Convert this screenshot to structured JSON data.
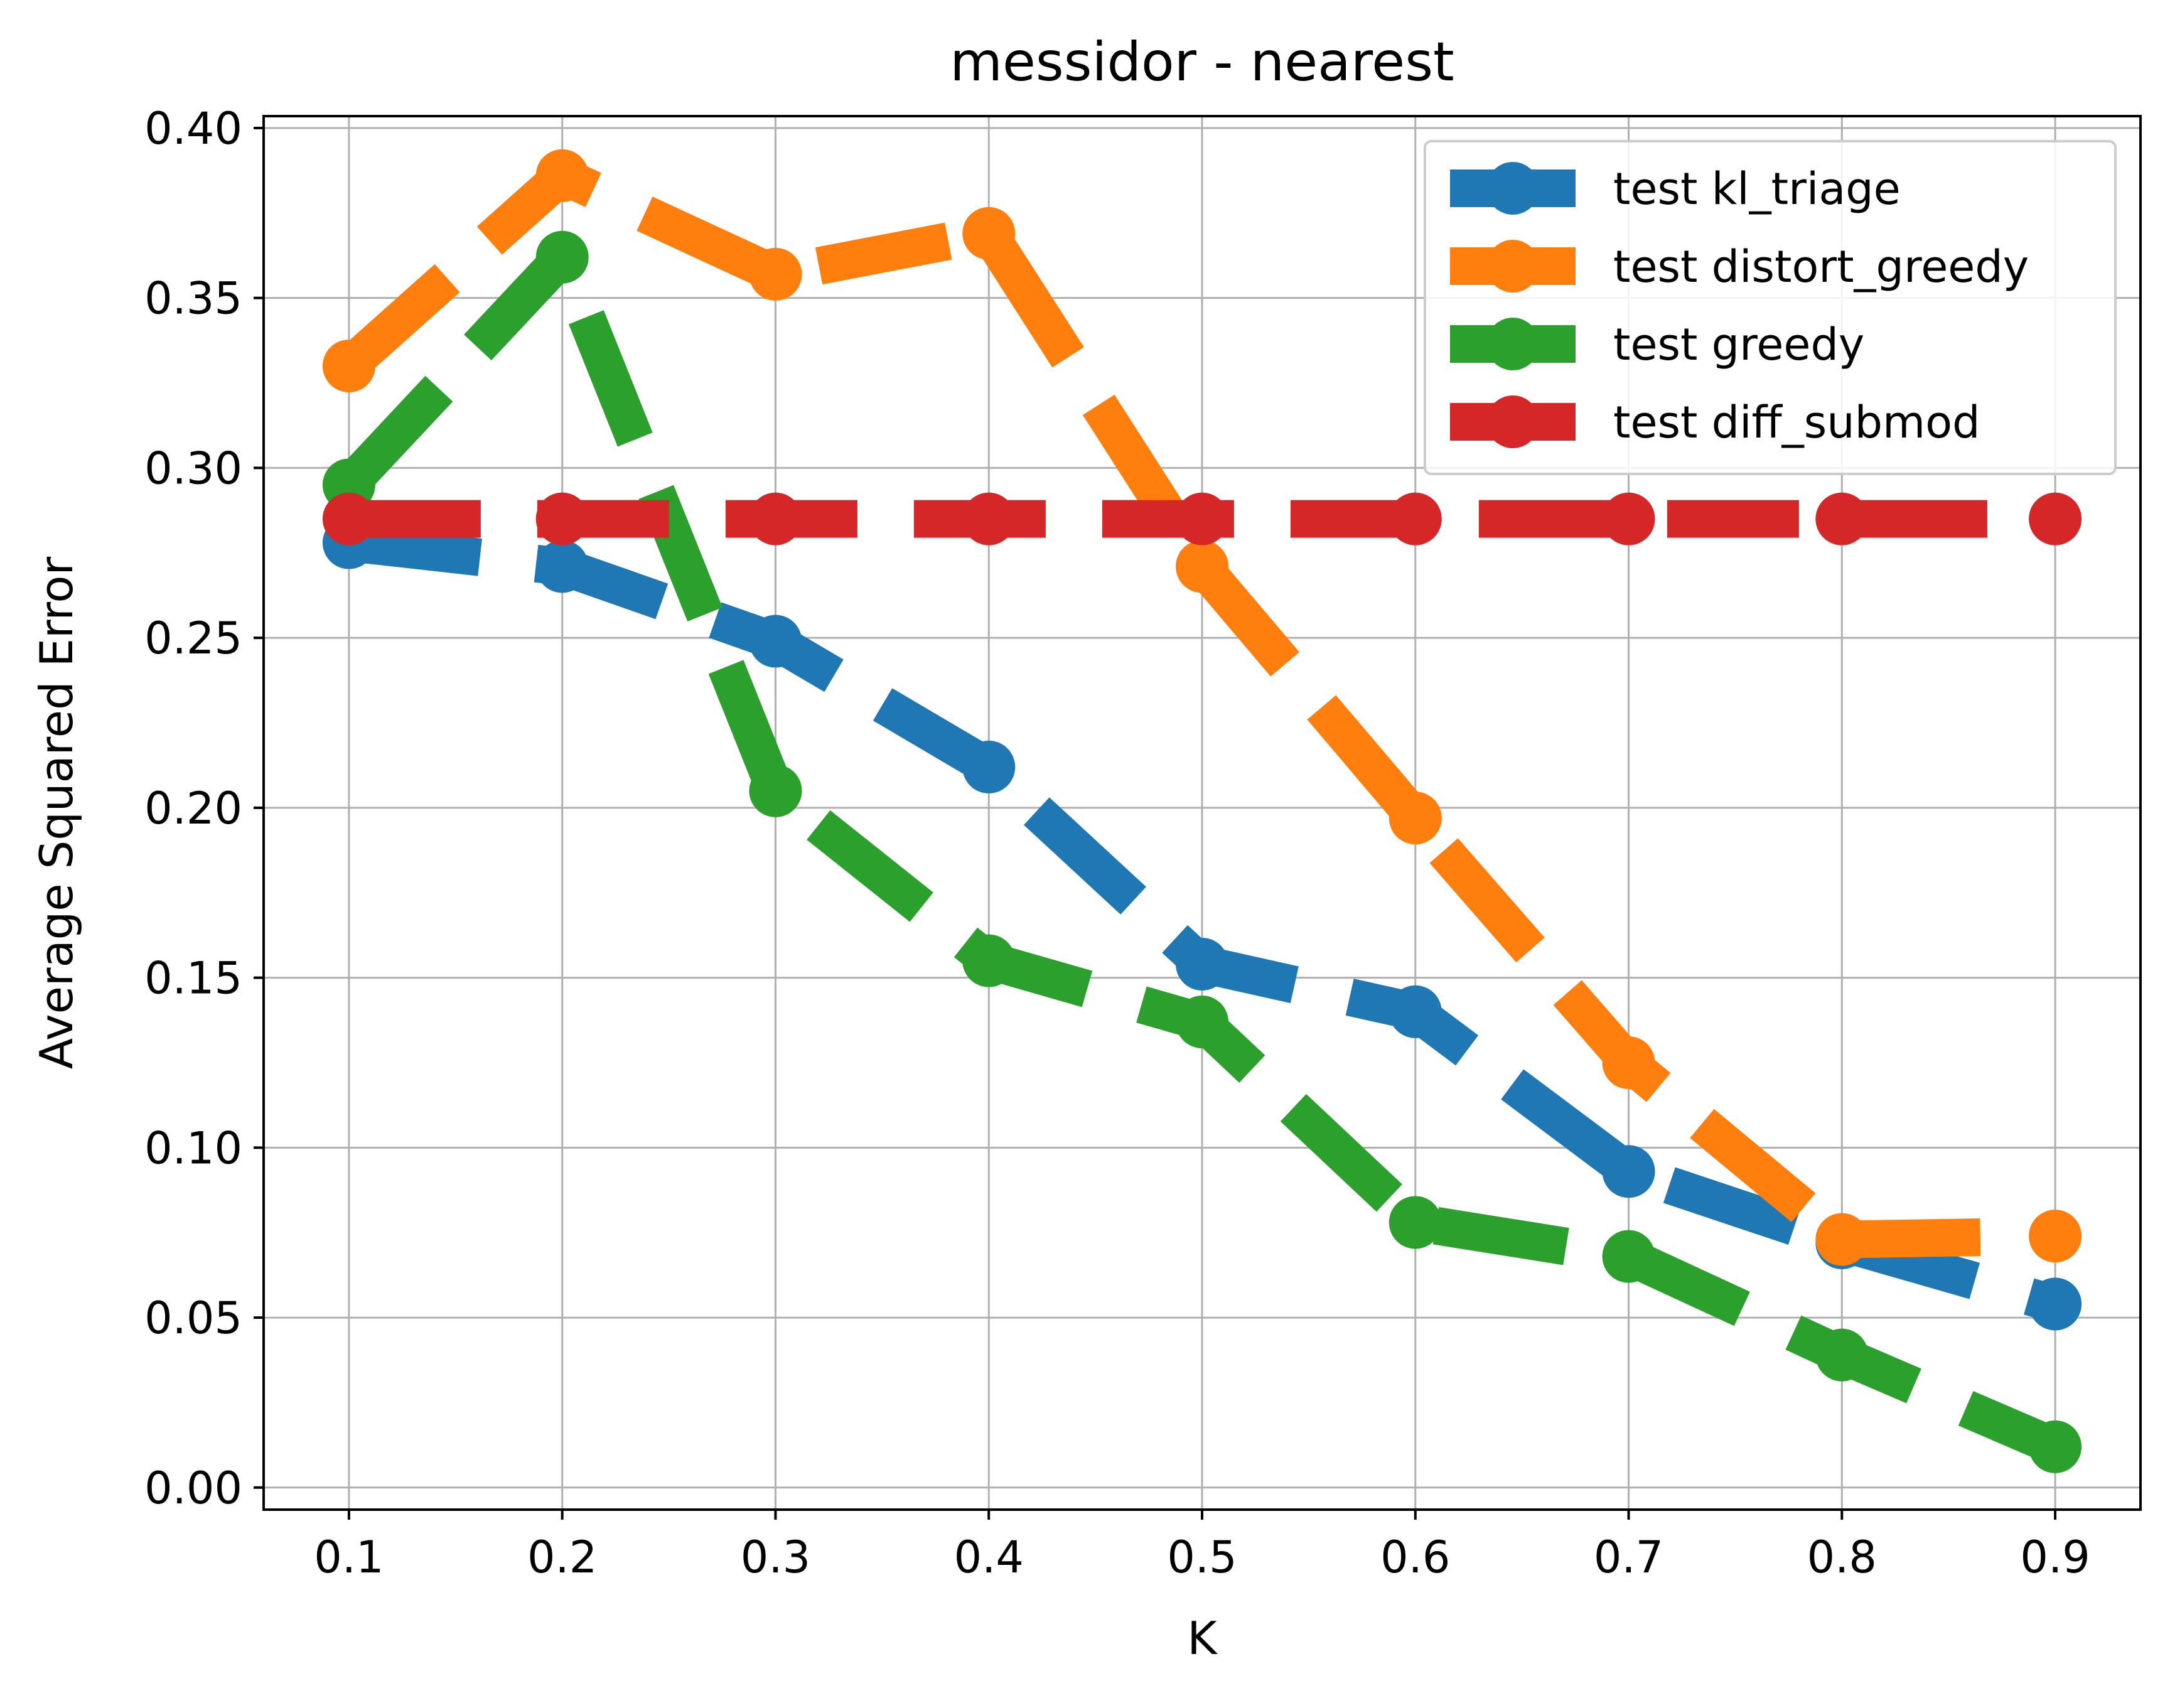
{
  "chart_data": {
    "type": "line",
    "title": "messidor - nearest",
    "xlabel": "K",
    "ylabel": "Average Squared Error",
    "x": [
      0.1,
      0.2,
      0.3,
      0.4,
      0.5,
      0.6,
      0.7,
      0.8,
      0.9
    ],
    "x_tick_labels": [
      "0.1",
      "0.2",
      "0.3",
      "0.4",
      "0.5",
      "0.6",
      "0.7",
      "0.8",
      "0.9"
    ],
    "y_ticks": [
      0.0,
      0.05,
      0.1,
      0.15,
      0.2,
      0.25,
      0.3,
      0.35,
      0.4
    ],
    "y_tick_labels": [
      "0.00",
      "0.05",
      "0.10",
      "0.15",
      "0.20",
      "0.25",
      "0.30",
      "0.35",
      "0.40"
    ],
    "xlim": [
      0.06,
      0.94
    ],
    "ylim": [
      -0.0065,
      0.4035
    ],
    "grid": true,
    "legend_position": "top-right",
    "line_style": "dashed",
    "series": [
      {
        "name": "test kl_triage",
        "color": "#1f77b4",
        "values": [
          0.278,
          0.271,
          0.249,
          0.212,
          0.154,
          0.14,
          0.093,
          0.072,
          0.054
        ]
      },
      {
        "name": "test distort_greedy",
        "color": "#ff7f0e",
        "values": [
          0.33,
          0.386,
          0.357,
          0.369,
          0.271,
          0.197,
          0.125,
          0.073,
          0.074
        ]
      },
      {
        "name": "test greedy",
        "color": "#2ca02c",
        "values": [
          0.295,
          0.362,
          0.205,
          0.155,
          0.137,
          0.078,
          0.068,
          0.039,
          0.012
        ]
      },
      {
        "name": "test diff_submod",
        "color": "#d62728",
        "values": [
          0.285,
          0.285,
          0.285,
          0.285,
          0.285,
          0.285,
          0.285,
          0.285,
          0.285
        ]
      }
    ]
  }
}
